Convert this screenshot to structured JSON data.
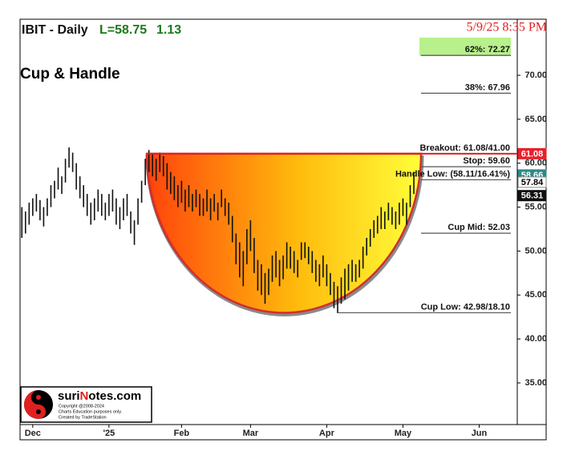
{
  "chart_data": {
    "type": "ohlc",
    "title": "IBIT - Daily",
    "last": "L=58.75",
    "change": "1.13",
    "timestamp": "5/9/25 8:35 PM",
    "pattern": "Cup & Handle",
    "categories": [
      null,
      null,
      null,
      "Dec",
      null,
      null,
      null,
      null,
      null,
      null,
      null,
      null,
      null,
      null,
      null,
      null,
      null,
      null,
      null,
      null,
      null,
      null,
      null,
      null,
      "'25",
      null,
      null,
      null,
      null,
      null,
      null,
      null,
      null,
      null,
      null,
      null,
      null,
      null,
      null,
      null,
      null,
      null,
      null,
      null,
      "Feb",
      null,
      null,
      null,
      null,
      null,
      null,
      null,
      null,
      null,
      null,
      null,
      null,
      null,
      null,
      null,
      null,
      null,
      null,
      "Mar",
      null,
      null,
      null,
      null,
      null,
      null,
      null,
      null,
      null,
      null,
      null,
      null,
      null,
      null,
      null,
      null,
      null,
      null,
      null,
      null,
      "Apr",
      null,
      null,
      null,
      null,
      null,
      null,
      null,
      null,
      null,
      null,
      null,
      null,
      null,
      null,
      null,
      null,
      null,
      null,
      null,
      null,
      "May",
      null,
      null,
      null,
      null,
      null,
      null,
      null,
      null,
      null,
      null,
      null,
      null,
      null,
      null,
      null,
      null,
      null,
      null,
      null,
      null,
      "Jun",
      null,
      null,
      null,
      null,
      null,
      null,
      null,
      null,
      null,
      null
    ],
    "high": [
      55,
      54.5,
      55.5,
      56,
      56.5,
      55.8,
      55,
      56,
      57.5,
      58,
      59.5,
      58.5,
      60.5,
      61.8,
      61.2,
      60,
      58.5,
      57.5,
      56.5,
      55.5,
      56,
      57,
      56.5,
      55.5,
      56.5,
      57,
      56,
      55,
      56,
      56.5,
      54.5,
      53.5,
      56,
      58,
      60.5,
      61.5,
      61,
      60.5,
      61.2,
      60.8,
      60,
      59,
      58.5,
      57.5,
      58,
      57,
      57.5,
      56.5,
      57,
      56.5,
      56,
      57,
      56,
      56.5,
      55.5,
      57,
      56,
      55.5,
      54,
      52,
      51,
      50,
      52.5,
      53.5,
      51.5,
      49,
      48.5,
      47.5,
      48,
      49.5,
      50,
      49,
      49.5,
      51,
      50.5,
      50,
      49,
      51,
      51,
      50.5,
      50,
      49,
      48.5,
      49.5,
      48.5,
      47.5,
      46.5,
      46,
      47,
      48,
      48.5,
      49,
      48.5,
      49,
      50.5,
      51.5,
      52.5,
      53.5,
      54,
      55,
      54.5,
      55.5,
      55,
      54.5,
      55.5,
      56,
      55.5,
      57.5,
      59,
      null,
      null,
      null,
      null,
      null,
      null,
      null,
      null,
      null,
      null,
      null,
      null,
      null,
      null,
      null,
      null,
      null,
      null,
      null,
      null,
      null,
      null,
      null,
      null,
      null,
      null,
      null,
      null
    ],
    "low": [
      51.5,
      52,
      53,
      54,
      54.5,
      53.5,
      52.8,
      54,
      55,
      56,
      57,
      56.5,
      57.8,
      59.5,
      59,
      57,
      56,
      55,
      54,
      53,
      53.5,
      54.5,
      54,
      53.5,
      54,
      54.5,
      53,
      52.5,
      53.5,
      54,
      52,
      50.7,
      53,
      55.5,
      57.5,
      59,
      58.5,
      58,
      59,
      58.5,
      57,
      56.5,
      55.8,
      55,
      55.5,
      54.5,
      55,
      54.5,
      55,
      54,
      54,
      54.5,
      53.5,
      54.5,
      53.5,
      55,
      54,
      53,
      51,
      48.5,
      47,
      46,
      48.5,
      50,
      47.5,
      45.5,
      45,
      44,
      45,
      46.5,
      47,
      46,
      46.8,
      48,
      48,
      47.5,
      47,
      49,
      49.2,
      48.5,
      47.5,
      46.5,
      46,
      47,
      46,
      45,
      43.5,
      43,
      44,
      44.5,
      45.5,
      46.5,
      46.5,
      47,
      48,
      49.5,
      50.5,
      51.5,
      52,
      52.5,
      52.5,
      53.5,
      53,
      52.5,
      53,
      54,
      53,
      55,
      56.5,
      null,
      null,
      null,
      null,
      null,
      null,
      null,
      null,
      null,
      null,
      null,
      null,
      null,
      null,
      null,
      null,
      null,
      null,
      null,
      null,
      null,
      null,
      null,
      null,
      null,
      null,
      null,
      null
    ],
    "color": "#111111",
    "ylim": [
      30.26,
      76.38
    ],
    "yticks": [
      {
        "value": 35,
        "label": "35.00"
      },
      {
        "value": 40,
        "label": "40.00"
      },
      {
        "value": 45,
        "label": "45.00"
      },
      {
        "value": 50,
        "label": "50.00"
      },
      {
        "value": 55,
        "label": "55.00"
      },
      {
        "value": 60,
        "label": "60.00"
      },
      {
        "value": 65,
        "label": "65.00"
      },
      {
        "value": 70,
        "label": "70.00"
      }
    ],
    "levels": [
      {
        "label": "62%: 72.27",
        "value": 72.27,
        "color": "#555555"
      },
      {
        "label": "38%: 67.96",
        "value": 67.96,
        "color": "#555555"
      },
      {
        "label": "Breakout: 61.08/41.00",
        "value": 61.08,
        "color": "#e02020"
      },
      {
        "label": "Stop: 59.60",
        "value": 59.6,
        "color": "#555555"
      },
      {
        "label": "Handle Low: (58.11/16.41%)",
        "value": 58.11,
        "color": "#555555"
      },
      {
        "label": "Cup Mid: 52.03",
        "value": 52.03,
        "color": "#555555"
      },
      {
        "label": "Cup Low: 42.98/18.10",
        "value": 42.98,
        "color": "#555555"
      }
    ],
    "price_tags": [
      {
        "value": 61.08,
        "color": "#e8202a"
      },
      {
        "value": 58.66,
        "color": "#2a8a86"
      },
      {
        "value": 57.84,
        "color": "#ffffff"
      },
      {
        "value": 56.31,
        "color": "#111111"
      }
    ]
  },
  "logo": {
    "name_parts": [
      "suri",
      "N",
      "otes.com"
    ],
    "lines": [
      "Copyright @2008-2024",
      "Charts Education purposes only.",
      "Created by TradeStation"
    ]
  }
}
